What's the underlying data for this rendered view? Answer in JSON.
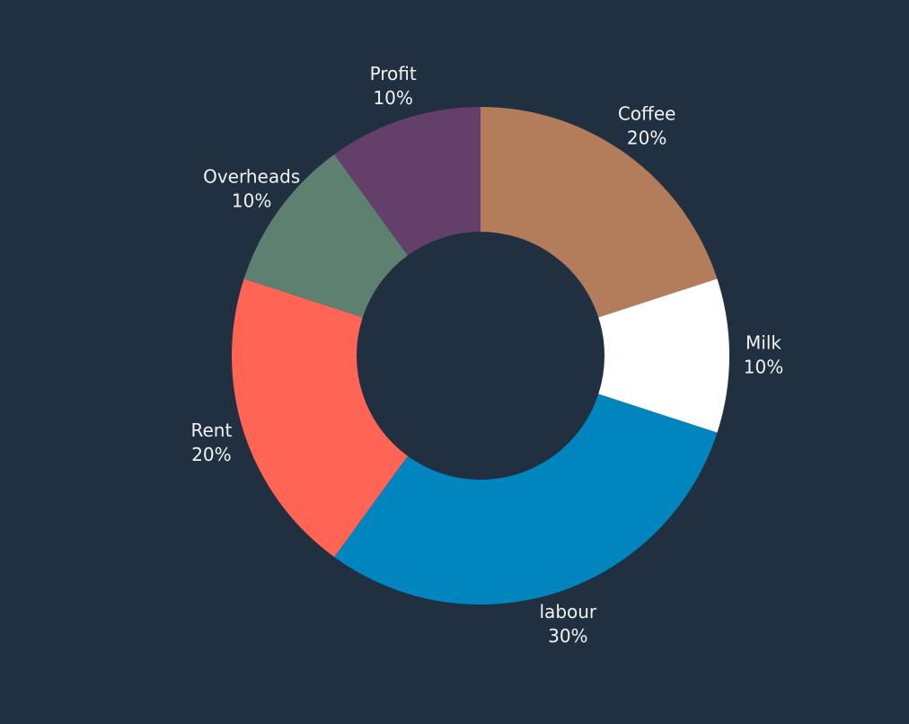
{
  "chart_data": {
    "type": "donut",
    "categories": [
      "Coffee",
      "Milk",
      "labour",
      "Rent",
      "Overheads",
      "Profit"
    ],
    "values": [
      20,
      10,
      30,
      20,
      10,
      10
    ],
    "value_labels": [
      "20%",
      "10%",
      "30%",
      "20%",
      "10%",
      "10%"
    ],
    "colors": [
      "#b37d5c",
      "#ffffff",
      "#0085be",
      "#ff6455",
      "#5e8071",
      "#643f6a"
    ]
  }
}
